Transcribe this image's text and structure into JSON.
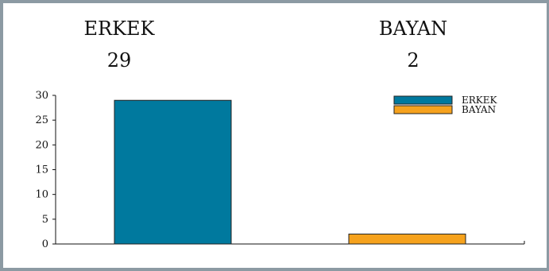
{
  "summary": [
    {
      "label": "ERKEK",
      "value": "29"
    },
    {
      "label": "BAYAN",
      "value": "2"
    }
  ],
  "chart_data": {
    "type": "bar",
    "categories": [
      "ERKEK",
      "BAYAN"
    ],
    "values": [
      29,
      2
    ],
    "colors": [
      "#00799e",
      "#f6a21d"
    ],
    "ylim": [
      0,
      30
    ],
    "yticks": [
      0,
      5,
      10,
      15,
      20,
      25,
      30
    ],
    "legend": {
      "placement": "top-right",
      "entries": [
        "ERKEK",
        "BAYAN"
      ]
    },
    "grid": false
  }
}
